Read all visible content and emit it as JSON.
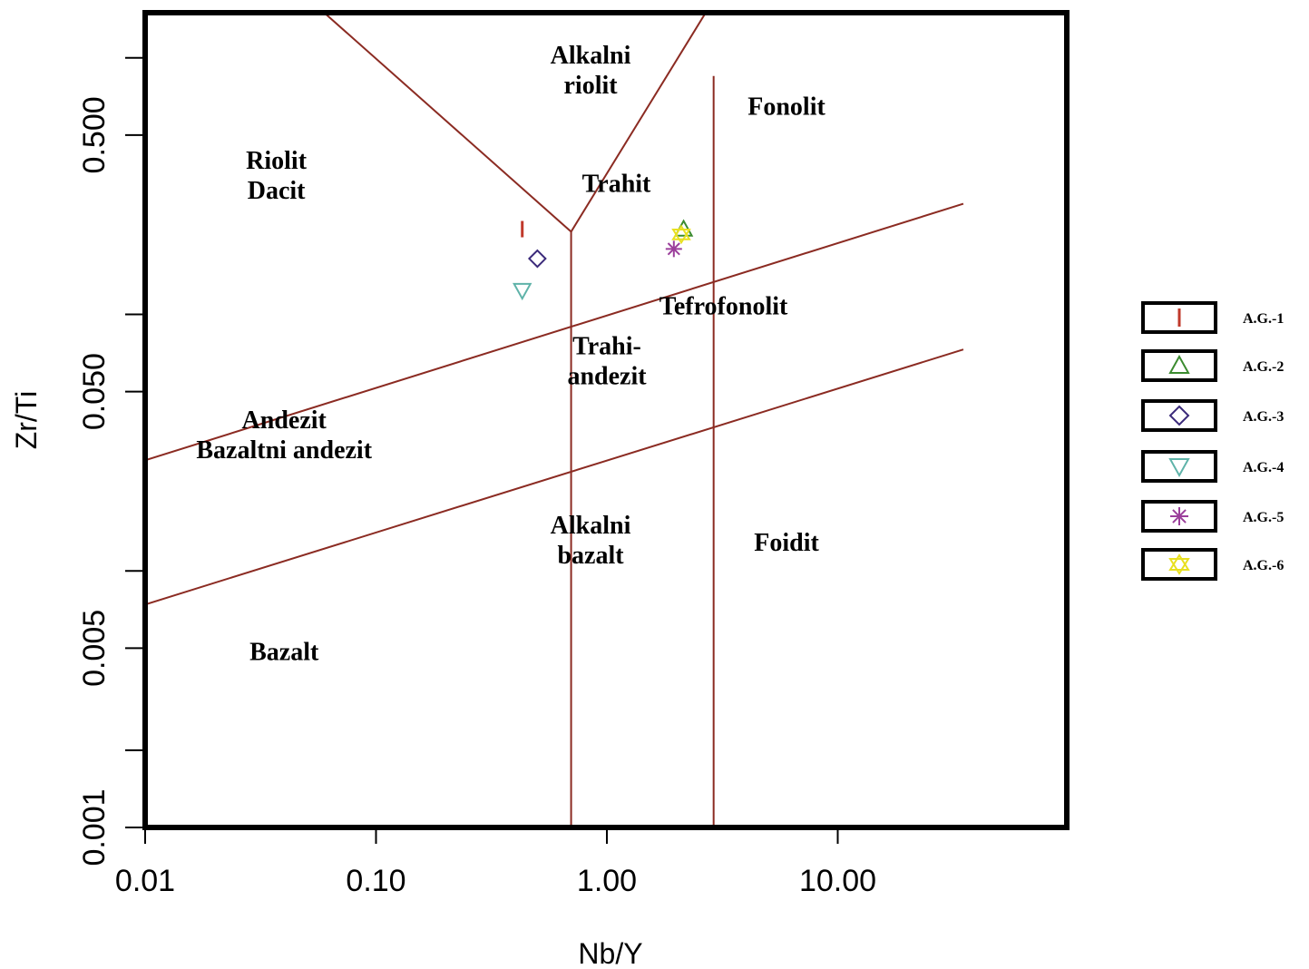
{
  "chart_data": {
    "type": "scatter",
    "title": "",
    "xlabel": "Nb/Y",
    "ylabel": "Zr/Ti",
    "x_scale": "log",
    "y_scale": "log",
    "xlim": [
      0.01,
      40
    ],
    "ylim": [
      0.001,
      1.5
    ],
    "x_ticks": [
      {
        "value": 0.01,
        "label": "0.01"
      },
      {
        "value": 0.1,
        "label": "0.10"
      },
      {
        "value": 1,
        "label": "1.00"
      },
      {
        "value": 10,
        "label": "10.00"
      }
    ],
    "x_minor_ticks": [],
    "y_ticks": [
      {
        "value": 0.001,
        "label": "0.001"
      },
      {
        "value": 0.005,
        "label": "0.005"
      },
      {
        "value": 0.05,
        "label": "0.050"
      },
      {
        "value": 0.5,
        "label": "0.500"
      }
    ],
    "y_minor_ticks": [
      0.002,
      0.01,
      0.1,
      1.0
    ],
    "line_color": "#8b2b22",
    "boundaries": [
      {
        "points": [
          [
            0.055,
            1.6
          ],
          [
            0.7,
            0.21
          ]
        ]
      },
      {
        "points": [
          [
            0.7,
            0.21
          ],
          [
            2.8,
            1.6
          ]
        ]
      },
      {
        "points": [
          [
            0.7,
            0.21
          ],
          [
            0.7,
            0.001
          ]
        ]
      },
      {
        "points": [
          [
            2.9,
            0.85
          ],
          [
            2.9,
            0.001
          ]
        ]
      },
      {
        "points": [
          [
            0.01,
            0.027
          ],
          [
            35,
            0.27
          ]
        ]
      },
      {
        "points": [
          [
            0.01,
            0.0074
          ],
          [
            35,
            0.073
          ]
        ]
      }
    ],
    "regions": [
      {
        "lines": [
          "Alkalni",
          "riolit"
        ],
        "x": 0.85,
        "y": 0.95
      },
      {
        "lines": [
          "Fonolit"
        ],
        "x": 6.0,
        "y": 0.6
      },
      {
        "lines": [
          "Riolit",
          "Dacit"
        ],
        "x": 0.037,
        "y": 0.37
      },
      {
        "lines": [
          "Trahit"
        ],
        "x": 1.1,
        "y": 0.3
      },
      {
        "lines": [
          "Tefrofonolit"
        ],
        "x": 3.2,
        "y": 0.1
      },
      {
        "lines": [
          "Trahi-",
          "andezit"
        ],
        "x": 1.0,
        "y": 0.07
      },
      {
        "lines": [
          "Andezit",
          "Bazaltni andezit"
        ],
        "x": 0.04,
        "y": 0.036
      },
      {
        "lines": [
          "Alkalni",
          "bazalt"
        ],
        "x": 0.85,
        "y": 0.014
      },
      {
        "lines": [
          "Foidit"
        ],
        "x": 6.0,
        "y": 0.012
      },
      {
        "lines": [
          "Bazalt"
        ],
        "x": 0.04,
        "y": 0.0045
      }
    ],
    "series": [
      {
        "name": "A.G.-1",
        "marker": "bar",
        "color": "#c0392b",
        "x": [
          0.43
        ],
        "y": [
          0.215
        ]
      },
      {
        "name": "A.G.-2",
        "marker": "triangle-up",
        "color": "#3b8b2f",
        "x": [
          2.15
        ],
        "y": [
          0.215
        ]
      },
      {
        "name": "A.G.-3",
        "marker": "diamond",
        "color": "#3b2a7a",
        "x": [
          0.5
        ],
        "y": [
          0.165
        ]
      },
      {
        "name": "A.G.-4",
        "marker": "triangle-down",
        "color": "#5fb3a9",
        "x": [
          0.43
        ],
        "y": [
          0.124
        ]
      },
      {
        "name": "A.G.-5",
        "marker": "asterisk",
        "color": "#9b3f9b",
        "x": [
          1.95
        ],
        "y": [
          0.18
        ]
      },
      {
        "name": "A.G.-6",
        "marker": "star6",
        "color": "#e8e020",
        "x": [
          2.1
        ],
        "y": [
          0.205
        ]
      }
    ]
  }
}
